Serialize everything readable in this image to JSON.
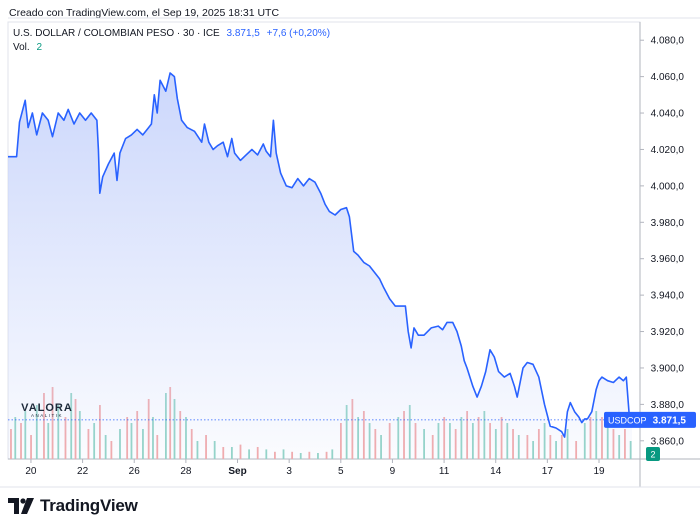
{
  "header": {
    "created_text": "Creado con TradingView.com, el Sep 19, 2025 18:31 UTC",
    "symbol_title": "U.S. DOLLAR / COLOMBIAN PESO · 30 · ICE",
    "last_price": "3.871,5",
    "change": "+7,6 (+0,20%)",
    "volume_label": "Vol.",
    "volume_value": "2"
  },
  "footer": {
    "brand": "TradingView"
  },
  "watermark": {
    "main": "VALORA",
    "sub": "ANALITIK"
  },
  "colors": {
    "line": "#2962ff",
    "area_top": "#c9d5fb",
    "vol_up": "#8fd3c4",
    "vol_down": "#f3a7a7",
    "axis_text": "#131722",
    "price_label_bg": "#2962ff",
    "vol_label_bg": "#089981"
  },
  "chart_data": {
    "type": "area",
    "symbol": "USDCOP",
    "ylim": [
      3850,
      4090
    ],
    "y_ticks": [
      "4.080,0",
      "4.060,0",
      "4.040,0",
      "4.020,0",
      "4.000,0",
      "3.980,0",
      "3.960,0",
      "3.940,0",
      "3.920,0",
      "3.900,0",
      "3.880,0",
      "3.860,0"
    ],
    "y_tick_values": [
      4080,
      4060,
      4040,
      4020,
      4000,
      3980,
      3960,
      3940,
      3920,
      3900,
      3880,
      3860
    ],
    "x_ticks": [
      "20",
      "22",
      "26",
      "28",
      "Sep",
      "3",
      "5",
      "9",
      "11",
      "14",
      "17",
      "19"
    ],
    "x_tick_index": [
      16,
      52,
      88,
      124,
      160,
      196,
      232,
      268,
      304,
      340,
      376,
      412
    ],
    "n_points": 436,
    "last_price_label": "3.871,5",
    "last_price_value": 3871.5,
    "volume_label": "2",
    "values": [
      [
        0,
        4016
      ],
      [
        6,
        4016
      ],
      [
        8,
        4035
      ],
      [
        12,
        4047
      ],
      [
        14,
        4032
      ],
      [
        17,
        4040
      ],
      [
        20,
        4028
      ],
      [
        24,
        4040
      ],
      [
        28,
        4036
      ],
      [
        31,
        4027
      ],
      [
        35,
        4040
      ],
      [
        39,
        4036
      ],
      [
        42,
        4042
      ],
      [
        46,
        4034
      ],
      [
        50,
        4040
      ],
      [
        54,
        4036
      ],
      [
        58,
        4040
      ],
      [
        62,
        4036
      ],
      [
        63,
        4020
      ],
      [
        64,
        3996
      ],
      [
        66,
        4005
      ],
      [
        70,
        4012
      ],
      [
        74,
        4018
      ],
      [
        76,
        4003
      ],
      [
        78,
        4018
      ],
      [
        82,
        4026
      ],
      [
        86,
        4028
      ],
      [
        90,
        4031
      ],
      [
        94,
        4028
      ],
      [
        98,
        4032
      ],
      [
        100,
        4034
      ],
      [
        102,
        4050
      ],
      [
        104,
        4040
      ],
      [
        106,
        4058
      ],
      [
        110,
        4052
      ],
      [
        113,
        4062
      ],
      [
        116,
        4060
      ],
      [
        118,
        4048
      ],
      [
        121,
        4036
      ],
      [
        125,
        4032
      ],
      [
        130,
        4030
      ],
      [
        135,
        4024
      ],
      [
        137,
        4034
      ],
      [
        140,
        4024
      ],
      [
        143,
        4020
      ],
      [
        146,
        4022
      ],
      [
        150,
        4024
      ],
      [
        153,
        4016
      ],
      [
        156,
        4026
      ],
      [
        158,
        4018
      ],
      [
        162,
        4014
      ],
      [
        166,
        4017
      ],
      [
        170,
        4020
      ],
      [
        174,
        4017
      ],
      [
        178,
        4023
      ],
      [
        180,
        4019
      ],
      [
        183,
        4016
      ],
      [
        185,
        4036
      ],
      [
        187,
        4018
      ],
      [
        190,
        4007
      ],
      [
        194,
        4000
      ],
      [
        198,
        3999
      ],
      [
        202,
        4004
      ],
      [
        206,
        4000
      ],
      [
        210,
        4004
      ],
      [
        214,
        4002
      ],
      [
        218,
        3996
      ],
      [
        221,
        3990
      ],
      [
        224,
        3986
      ],
      [
        228,
        3984
      ],
      [
        232,
        3987
      ],
      [
        236,
        3988
      ],
      [
        238,
        3983
      ],
      [
        241,
        3964
      ],
      [
        244,
        3962
      ],
      [
        248,
        3958
      ],
      [
        252,
        3956
      ],
      [
        256,
        3952
      ],
      [
        259,
        3949
      ],
      [
        262,
        3944
      ],
      [
        266,
        3938
      ],
      [
        270,
        3934
      ],
      [
        274,
        3934
      ],
      [
        277,
        3934
      ],
      [
        279,
        3920
      ],
      [
        281,
        3911
      ],
      [
        283,
        3922
      ],
      [
        286,
        3918
      ],
      [
        290,
        3918
      ],
      [
        295,
        3922
      ],
      [
        300,
        3923
      ],
      [
        303,
        3921
      ],
      [
        306,
        3925
      ],
      [
        310,
        3925
      ],
      [
        313,
        3920
      ],
      [
        316,
        3912
      ],
      [
        318,
        3904
      ],
      [
        320,
        3900
      ],
      [
        324,
        3890
      ],
      [
        327,
        3884
      ],
      [
        330,
        3890
      ],
      [
        333,
        3898
      ],
      [
        336,
        3910
      ],
      [
        339,
        3906
      ],
      [
        342,
        3898
      ],
      [
        346,
        3895
      ],
      [
        350,
        3897
      ],
      [
        353,
        3890
      ],
      [
        355,
        3884
      ],
      [
        359,
        3900
      ],
      [
        362,
        3903
      ],
      [
        366,
        3902
      ],
      [
        370,
        3895
      ],
      [
        374,
        3880
      ],
      [
        378,
        3868
      ],
      [
        382,
        3867
      ],
      [
        386,
        3865
      ],
      [
        388,
        3862
      ],
      [
        390,
        3876
      ],
      [
        392,
        3881
      ],
      [
        395,
        3876
      ],
      [
        398,
        3873
      ],
      [
        400,
        3870
      ],
      [
        402,
        3872
      ],
      [
        404,
        3872
      ],
      [
        407,
        3876
      ],
      [
        410,
        3888
      ],
      [
        412,
        3893
      ],
      [
        414,
        3895
      ],
      [
        418,
        3893
      ],
      [
        422,
        3892
      ],
      [
        426,
        3895
      ],
      [
        429,
        3893
      ],
      [
        431,
        3895
      ],
      [
        433,
        3875
      ],
      [
        435,
        3871.5
      ]
    ],
    "volume_bars": [
      [
        2,
        0.25,
        "d"
      ],
      [
        5,
        0.35,
        "u"
      ],
      [
        9,
        0.3,
        "d"
      ],
      [
        12,
        0.4,
        "u"
      ],
      [
        16,
        0.2,
        "d"
      ],
      [
        20,
        0.45,
        "u"
      ],
      [
        25,
        0.55,
        "d"
      ],
      [
        28,
        0.3,
        "u"
      ],
      [
        31,
        0.6,
        "d"
      ],
      [
        35,
        0.45,
        "u"
      ],
      [
        40,
        0.35,
        "d"
      ],
      [
        44,
        0.55,
        "u"
      ],
      [
        47,
        0.5,
        "d"
      ],
      [
        50,
        0.4,
        "u"
      ],
      [
        56,
        0.25,
        "d"
      ],
      [
        60,
        0.3,
        "u"
      ],
      [
        64,
        0.45,
        "d"
      ],
      [
        68,
        0.2,
        "u"
      ],
      [
        72,
        0.15,
        "d"
      ],
      [
        78,
        0.25,
        "u"
      ],
      [
        83,
        0.35,
        "d"
      ],
      [
        86,
        0.3,
        "u"
      ],
      [
        90,
        0.4,
        "d"
      ],
      [
        94,
        0.25,
        "u"
      ],
      [
        98,
        0.5,
        "d"
      ],
      [
        101,
        0.35,
        "u"
      ],
      [
        104,
        0.2,
        "d"
      ],
      [
        110,
        0.55,
        "u"
      ],
      [
        113,
        0.6,
        "d"
      ],
      [
        116,
        0.5,
        "u"
      ],
      [
        120,
        0.4,
        "d"
      ],
      [
        124,
        0.35,
        "u"
      ],
      [
        128,
        0.25,
        "d"
      ],
      [
        132,
        0.15,
        "u"
      ],
      [
        138,
        0.2,
        "d"
      ],
      [
        144,
        0.15,
        "u"
      ],
      [
        150,
        0.1,
        "d"
      ],
      [
        156,
        0.1,
        "u"
      ],
      [
        162,
        0.12,
        "d"
      ],
      [
        168,
        0.08,
        "u"
      ],
      [
        174,
        0.1,
        "d"
      ],
      [
        180,
        0.08,
        "u"
      ],
      [
        186,
        0.06,
        "d"
      ],
      [
        192,
        0.08,
        "u"
      ],
      [
        198,
        0.06,
        "d"
      ],
      [
        204,
        0.05,
        "u"
      ],
      [
        210,
        0.06,
        "d"
      ],
      [
        216,
        0.05,
        "u"
      ],
      [
        222,
        0.06,
        "d"
      ],
      [
        226,
        0.08,
        "u"
      ],
      [
        232,
        0.3,
        "d"
      ],
      [
        236,
        0.45,
        "u"
      ],
      [
        240,
        0.5,
        "d"
      ],
      [
        244,
        0.35,
        "u"
      ],
      [
        248,
        0.4,
        "d"
      ],
      [
        252,
        0.3,
        "u"
      ],
      [
        256,
        0.25,
        "d"
      ],
      [
        260,
        0.2,
        "u"
      ],
      [
        266,
        0.3,
        "d"
      ],
      [
        272,
        0.35,
        "u"
      ],
      [
        276,
        0.4,
        "d"
      ],
      [
        280,
        0.45,
        "u"
      ],
      [
        284,
        0.3,
        "d"
      ],
      [
        290,
        0.25,
        "u"
      ],
      [
        296,
        0.2,
        "d"
      ],
      [
        300,
        0.3,
        "u"
      ],
      [
        304,
        0.35,
        "d"
      ],
      [
        308,
        0.3,
        "u"
      ],
      [
        312,
        0.25,
        "d"
      ],
      [
        316,
        0.35,
        "u"
      ],
      [
        320,
        0.4,
        "d"
      ],
      [
        324,
        0.3,
        "u"
      ],
      [
        328,
        0.35,
        "d"
      ],
      [
        332,
        0.4,
        "u"
      ],
      [
        336,
        0.3,
        "d"
      ],
      [
        340,
        0.25,
        "u"
      ],
      [
        344,
        0.35,
        "d"
      ],
      [
        348,
        0.3,
        "u"
      ],
      [
        352,
        0.25,
        "d"
      ],
      [
        356,
        0.2,
        "u"
      ],
      [
        362,
        0.2,
        "d"
      ],
      [
        366,
        0.15,
        "u"
      ],
      [
        370,
        0.25,
        "d"
      ],
      [
        374,
        0.3,
        "u"
      ],
      [
        378,
        0.2,
        "d"
      ],
      [
        382,
        0.15,
        "u"
      ],
      [
        386,
        0.2,
        "d"
      ],
      [
        390,
        0.25,
        "u"
      ],
      [
        396,
        0.15,
        "d"
      ],
      [
        402,
        0.3,
        "u"
      ],
      [
        406,
        0.35,
        "d"
      ],
      [
        410,
        0.4,
        "u"
      ],
      [
        414,
        0.35,
        "d"
      ],
      [
        418,
        0.3,
        "u"
      ],
      [
        422,
        0.25,
        "d"
      ],
      [
        426,
        0.2,
        "u"
      ],
      [
        430,
        0.25,
        "d"
      ],
      [
        434,
        0.15,
        "u"
      ]
    ]
  }
}
